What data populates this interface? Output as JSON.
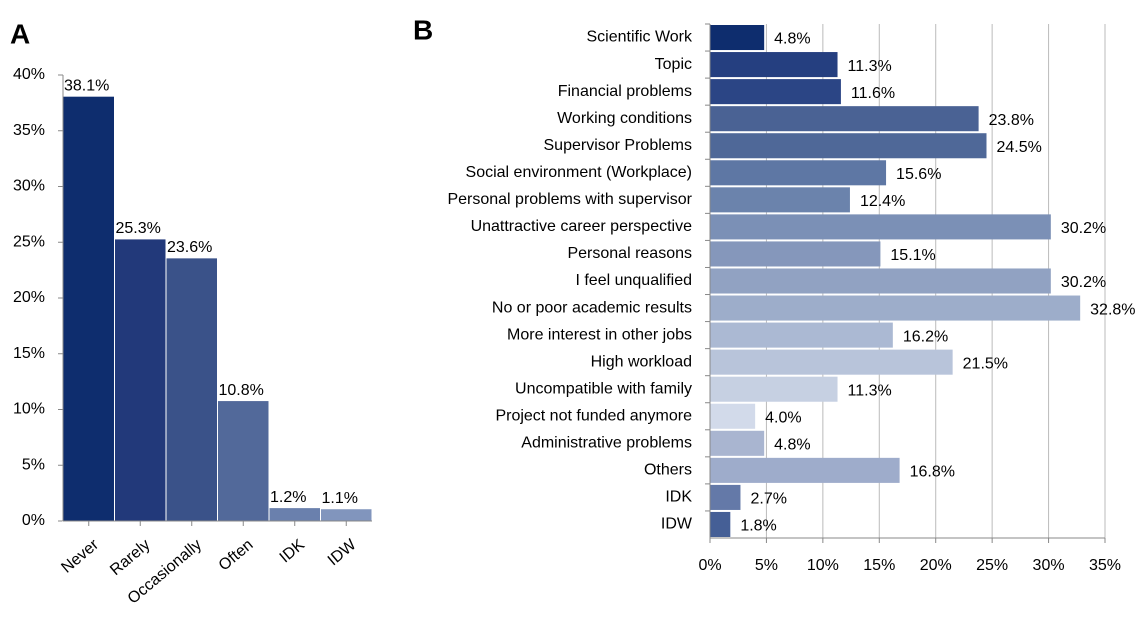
{
  "chart_data": [
    {
      "type": "bar",
      "title": "A",
      "categories": [
        "Never",
        "Rarely",
        "Occasionally",
        "Often",
        "IDK",
        "IDW"
      ],
      "values": [
        38.1,
        25.3,
        23.6,
        10.8,
        1.2,
        1.1
      ],
      "value_labels": [
        "38.1%",
        "25.3%",
        "23.6%",
        "10.8%",
        "1.2%",
        "1.1%"
      ],
      "colors": [
        "#0e2d6e",
        "#22397a",
        "#3a5289",
        "#52699a",
        "#6a80ad",
        "#8195bd"
      ],
      "ylim": [
        0,
        40
      ],
      "yticks": [
        {
          "value": 0,
          "label": "0%"
        },
        {
          "value": 5,
          "label": "5%"
        },
        {
          "value": 10,
          "label": "10%"
        },
        {
          "value": 15,
          "label": "15%"
        },
        {
          "value": 20,
          "label": "20%"
        },
        {
          "value": 25,
          "label": "25%"
        },
        {
          "value": 30,
          "label": "30%"
        },
        {
          "value": 35,
          "label": "35%"
        },
        {
          "value": 40,
          "label": "40%"
        }
      ],
      "grid": false
    },
    {
      "type": "barh",
      "title": "B",
      "categories": [
        "Scientific Work",
        "Topic",
        "Financial problems",
        "Working conditions",
        "Supervisor Problems",
        "Social environment (Workplace)",
        "Personal problems with supervisor",
        "Unattractive career perspective",
        "Personal reasons",
        "I feel unqualified",
        "No or poor academic results",
        "More interest in other jobs",
        "High workload",
        "Uncompatible with family",
        "Project not funded anymore",
        "Administrative problems",
        "Others",
        "IDK",
        "IDW"
      ],
      "values": [
        4.8,
        11.3,
        11.6,
        23.8,
        24.5,
        15.6,
        12.4,
        30.2,
        15.1,
        30.2,
        32.8,
        16.2,
        21.5,
        11.3,
        4.0,
        4.8,
        16.8,
        2.7,
        1.8
      ],
      "value_labels": [
        "4.8%",
        "11.3%",
        "11.6%",
        "23.8%",
        "24.5%",
        "15.6%",
        "12.4%",
        "30.2%",
        "15.1%",
        "30.2%",
        "32.8%",
        "16.2%",
        "21.5%",
        "11.3%",
        "4.0%",
        "4.8%",
        "16.8%",
        "2.7%",
        "1.8%"
      ],
      "colors": [
        "#0e2d6e",
        "#253f80",
        "#2b4585",
        "#4a6294",
        "#4f6898",
        "#5e77a4",
        "#6b83ac",
        "#7b90b6",
        "#8597bb",
        "#91a2c2",
        "#9dadca",
        "#abb9d3",
        "#b8c4da",
        "#c6d0e2",
        "#d2daea",
        "#a9b5d0",
        "#9eaccb",
        "#6479a8",
        "#455f96"
      ],
      "xlim": [
        0,
        35
      ],
      "xticks": [
        {
          "value": 0,
          "label": "0%"
        },
        {
          "value": 5,
          "label": "5%"
        },
        {
          "value": 10,
          "label": "10%"
        },
        {
          "value": 15,
          "label": "15%"
        },
        {
          "value": 20,
          "label": "20%"
        },
        {
          "value": 25,
          "label": "25%"
        },
        {
          "value": 30,
          "label": "30%"
        },
        {
          "value": 35,
          "label": "35%"
        }
      ],
      "grid": true
    }
  ]
}
